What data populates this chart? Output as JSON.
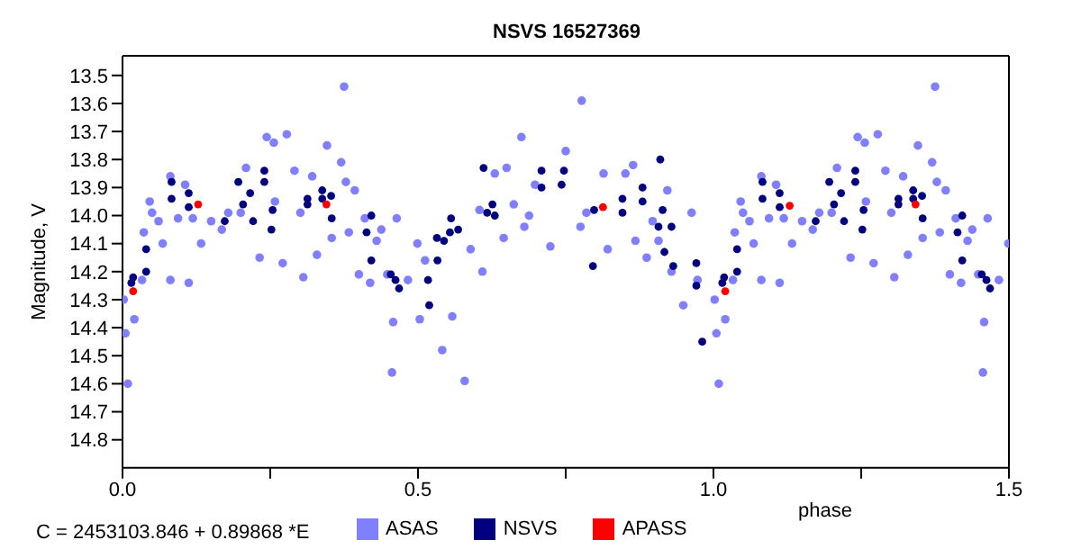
{
  "chart_data": {
    "type": "scatter",
    "title": "NSVS 16527369",
    "xlabel": "phase",
    "ylabel": "Magnitude, V",
    "annotations": [
      "C = 2453103.846 + 0.89868 *E"
    ],
    "xlim": [
      0,
      1.5
    ],
    "xticks": [
      {
        "value": 0,
        "label": "0.0"
      },
      {
        "value": 0.25,
        "label": null
      },
      {
        "value": 0.5,
        "label": "0.5"
      },
      {
        "value": 0.75,
        "label": null
      },
      {
        "value": 1,
        "label": "1.0"
      },
      {
        "value": 1.25,
        "label": null
      },
      {
        "value": 1.5,
        "label": "1.5"
      }
    ],
    "ylim": [
      14.9,
      13.43
    ],
    "yticks": [
      13.5,
      13.6,
      13.7,
      13.8,
      13.9,
      {
        "value": 14,
        "label": "14.0"
      },
      14.1,
      14.2,
      14.3,
      14.4,
      14.5,
      14.6,
      14.7,
      14.8
    ],
    "legend": "bottom",
    "marker": "circle",
    "series": [
      {
        "name": "ASAS",
        "color": "#8080ff",
        "x": [
          0.002,
          0.005,
          0.009,
          0.02,
          0.033,
          0.036,
          0.046,
          0.05,
          0.061,
          0.068,
          0.081,
          0.081,
          0.094,
          0.106,
          0.112,
          0.119,
          0.133,
          0.15,
          0.168,
          0.179,
          0.2,
          0.209,
          0.232,
          0.244,
          0.256,
          0.258,
          0.271,
          0.278,
          0.291,
          0.301,
          0.306,
          0.321,
          0.329,
          0.346,
          0.354,
          0.37,
          0.375,
          0.378,
          0.383,
          0.393,
          0.4,
          0.41,
          0.419,
          0.43,
          0.438,
          0.448,
          0.456,
          0.458,
          0.464,
          0.483,
          0.499,
          0.503,
          0.512,
          0.541,
          0.558,
          0.579,
          0.589,
          0.604,
          0.609,
          0.63,
          0.645,
          0.65,
          0.662,
          0.675,
          0.68,
          0.688,
          0.698,
          0.724,
          0.75,
          0.777,
          0.785,
          0.775,
          0.814,
          0.821,
          0.851,
          0.864,
          0.868,
          0.887,
          0.897,
          0.907,
          0.922,
          0.929,
          0.949,
          0.963,
          0.973,
          1.002,
          1.005,
          1.009,
          1.02,
          1.033,
          1.036,
          1.046,
          1.05,
          1.061,
          1.068,
          1.081,
          1.081,
          1.094,
          1.106,
          1.112,
          1.119,
          1.133,
          1.15,
          1.168,
          1.179,
          1.2,
          1.209,
          1.232,
          1.244,
          1.256,
          1.258,
          1.271,
          1.278,
          1.291,
          1.301,
          1.306,
          1.321,
          1.329,
          1.346,
          1.354,
          1.37,
          1.375,
          1.378,
          1.383,
          1.393,
          1.4,
          1.41,
          1.419,
          1.43,
          1.438,
          1.448,
          1.456,
          1.458,
          1.464,
          1.483,
          1.499
        ],
        "values": [
          14.3,
          14.42,
          14.6,
          14.37,
          14.23,
          14.06,
          13.95,
          13.99,
          14.02,
          14.1,
          13.86,
          14.23,
          14.01,
          13.89,
          14.24,
          14.01,
          14.1,
          14.02,
          14.05,
          13.99,
          13.99,
          13.83,
          14.15,
          13.72,
          13.74,
          13.95,
          14.17,
          13.71,
          13.84,
          13.99,
          14.22,
          13.86,
          14.14,
          13.75,
          14.08,
          13.81,
          13.54,
          13.88,
          14.06,
          13.91,
          14.21,
          14.01,
          14.24,
          14.09,
          14.05,
          14.21,
          14.56,
          14.38,
          14.01,
          14.23,
          14.1,
          14.37,
          14.16,
          14.48,
          14.36,
          14.59,
          14.12,
          13.98,
          14.2,
          13.85,
          14.08,
          13.83,
          13.96,
          13.72,
          14.04,
          14.0,
          13.89,
          14.11,
          13.77,
          13.59,
          13.99,
          14.04,
          13.85,
          14.12,
          13.85,
          13.82,
          14.09,
          14.15,
          14.02,
          14.09,
          13.91,
          14.2,
          14.32,
          13.99,
          14.23,
          14.3,
          14.42,
          14.6,
          14.37,
          14.23,
          14.06,
          13.95,
          13.99,
          14.02,
          14.1,
          13.86,
          14.23,
          14.01,
          13.89,
          14.24,
          14.01,
          14.1,
          14.02,
          14.05,
          13.99,
          13.99,
          13.83,
          14.15,
          13.72,
          13.74,
          13.95,
          14.17,
          13.71,
          13.84,
          13.99,
          14.22,
          13.86,
          14.14,
          13.75,
          14.08,
          13.81,
          13.54,
          13.88,
          14.06,
          13.91,
          14.21,
          14.01,
          14.24,
          14.09,
          14.05,
          14.21,
          14.56,
          14.38,
          14.01,
          14.23,
          14.1
        ]
      },
      {
        "name": "NSVS",
        "color": "#000080",
        "x": [
          0.018,
          0.015,
          0.04,
          0.04,
          0.083,
          0.083,
          0.112,
          0.112,
          0.173,
          0.196,
          0.204,
          0.221,
          0.216,
          0.24,
          0.24,
          0.252,
          0.254,
          0.313,
          0.313,
          0.338,
          0.338,
          0.354,
          0.353,
          0.413,
          0.421,
          0.421,
          0.454,
          0.462,
          0.468,
          0.517,
          0.519,
          0.532,
          0.533,
          0.544,
          0.554,
          0.556,
          0.568,
          0.611,
          0.617,
          0.626,
          0.63,
          0.709,
          0.709,
          0.747,
          0.743,
          0.798,
          0.796,
          0.846,
          0.846,
          0.88,
          0.88,
          0.91,
          0.907,
          0.914,
          0.917,
          0.929,
          0.932,
          0.971,
          0.971,
          0.981,
          1.018,
          1.015,
          1.04,
          1.04,
          1.083,
          1.083,
          1.112,
          1.112,
          1.173,
          1.196,
          1.204,
          1.221,
          1.216,
          1.24,
          1.24,
          1.252,
          1.254,
          1.313,
          1.313,
          1.338,
          1.338,
          1.354,
          1.353,
          1.413,
          1.421,
          1.421,
          1.454,
          1.462,
          1.468
        ],
        "values": [
          14.22,
          14.24,
          14.12,
          14.2,
          13.94,
          13.88,
          13.92,
          13.97,
          14.02,
          13.88,
          13.96,
          14.02,
          13.92,
          13.84,
          13.88,
          14.05,
          13.98,
          13.94,
          13.96,
          13.91,
          13.94,
          14.01,
          13.93,
          14.06,
          14.0,
          14.16,
          14.21,
          14.23,
          14.26,
          14.23,
          14.32,
          14.08,
          14.16,
          14.09,
          14.06,
          14.01,
          14.05,
          13.83,
          13.99,
          13.96,
          14.0,
          13.84,
          13.9,
          13.84,
          13.89,
          13.98,
          14.18,
          13.94,
          13.99,
          13.9,
          13.95,
          13.8,
          14.04,
          13.98,
          14.13,
          14.04,
          14.18,
          14.17,
          14.25,
          14.45,
          14.22,
          14.24,
          14.12,
          14.2,
          13.94,
          13.88,
          13.92,
          13.97,
          14.02,
          13.88,
          13.96,
          14.02,
          13.92,
          13.84,
          13.88,
          14.05,
          13.98,
          13.94,
          13.96,
          13.91,
          13.94,
          14.01,
          13.93,
          14.06,
          14.0,
          14.16,
          14.21,
          14.23,
          14.26
        ]
      },
      {
        "name": "APASS",
        "color": "#ff0000",
        "x": [
          0.018,
          0.128,
          0.345,
          0.813,
          1.02,
          1.129,
          1.342
        ],
        "values": [
          14.27,
          13.96,
          13.96,
          13.97,
          14.27,
          13.965,
          13.96
        ]
      }
    ]
  }
}
